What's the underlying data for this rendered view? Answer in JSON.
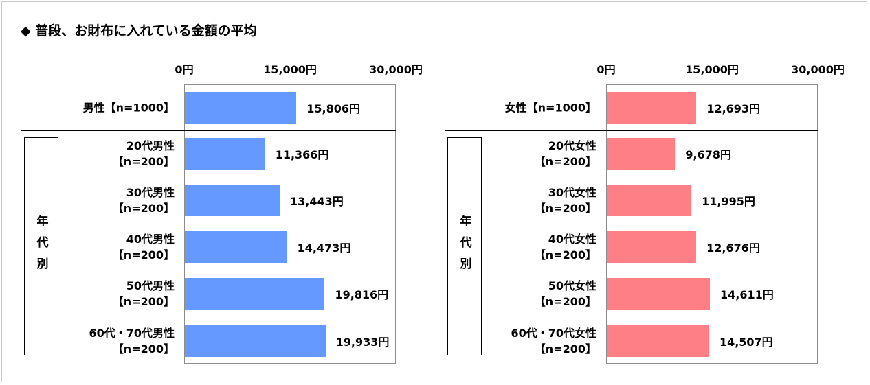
{
  "title": "◆ 普段、お財布に入れている金額の平均",
  "group_label": "年代別",
  "chart_data": [
    {
      "type": "bar",
      "orientation": "horizontal",
      "xlim": [
        0,
        30000
      ],
      "ticks": [
        "0円",
        "15,000円",
        "30,000円"
      ],
      "color": "#6699ff",
      "categories": [
        "男性【n=1000】",
        "20代男性\n【n=200】",
        "30代男性\n【n=200】",
        "40代男性\n【n=200】",
        "50代男性\n【n=200】",
        "60代・70代男性\n【n=200】"
      ],
      "values": [
        15806,
        11366,
        13443,
        14473,
        19816,
        19933
      ],
      "value_labels": [
        "15,806円",
        "11,366円",
        "13,443円",
        "14,473円",
        "19,816円",
        "19,933円"
      ]
    },
    {
      "type": "bar",
      "orientation": "horizontal",
      "xlim": [
        0,
        30000
      ],
      "ticks": [
        "0円",
        "15,000円",
        "30,000円"
      ],
      "color": "#ff7f86",
      "categories": [
        "女性【n=1000】",
        "20代女性\n【n=200】",
        "30代女性\n【n=200】",
        "40代女性\n【n=200】",
        "50代女性\n【n=200】",
        "60代・70代女性\n【n=200】"
      ],
      "values": [
        12693,
        9678,
        11995,
        12676,
        14611,
        14507
      ],
      "value_labels": [
        "12,693円",
        "9,678円",
        "11,995円",
        "12,676円",
        "14,611円",
        "14,507円"
      ]
    }
  ]
}
